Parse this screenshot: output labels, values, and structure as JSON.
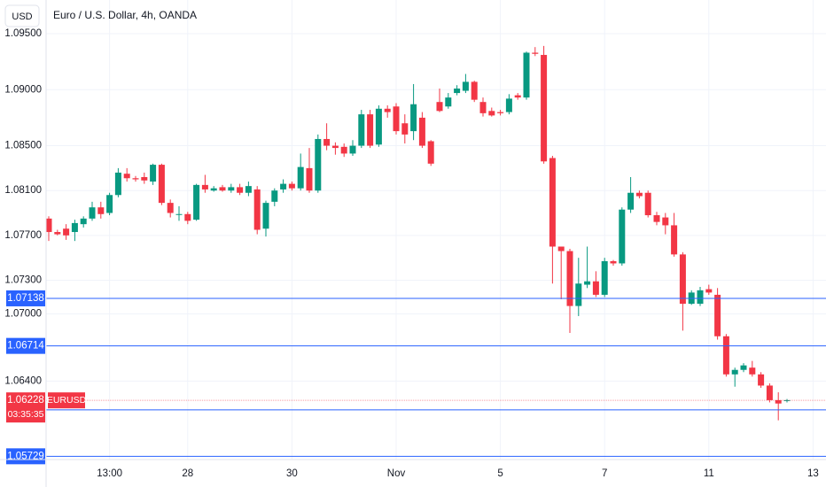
{
  "chart_data": {
    "type": "candlestick",
    "title": "Euro / U.S. Dollar, 4h, OANDA",
    "currency": "USD",
    "up_color": "#089981",
    "down_color": "#f23645",
    "grid": true,
    "ylim": [
      1.057,
      1.098
    ],
    "yticks": [
      {
        "value": 1.095,
        "label": "1.09500"
      },
      {
        "value": 1.09,
        "label": "1.09000"
      },
      {
        "value": 1.085,
        "label": "1.08500"
      },
      {
        "value": 1.081,
        "label": "1.08100"
      },
      {
        "value": 1.077,
        "label": "1.07700"
      },
      {
        "value": 1.073,
        "label": "1.07300"
      },
      {
        "value": 1.07,
        "label": "1.07000"
      },
      {
        "value": 1.064,
        "label": "1.06400"
      }
    ],
    "categories": [
      null,
      null,
      null,
      null,
      null,
      null,
      null,
      "13:00",
      null,
      null,
      null,
      null,
      null,
      null,
      null,
      null,
      "28",
      null,
      null,
      null,
      null,
      null,
      null,
      null,
      null,
      null,
      null,
      null,
      "30",
      null,
      null,
      null,
      null,
      null,
      null,
      null,
      null,
      null,
      null,
      null,
      "Nov",
      null,
      null,
      null,
      null,
      null,
      null,
      null,
      null,
      null,
      null,
      null,
      "5",
      null,
      null,
      null,
      null,
      null,
      null,
      null,
      null,
      null,
      null,
      null,
      "7",
      null,
      null,
      null,
      null,
      null,
      null,
      null,
      null,
      null,
      null,
      null,
      "11",
      null,
      null,
      null,
      null,
      null,
      null,
      null,
      null,
      null,
      null,
      null,
      "13"
    ],
    "open": [
      1.0785,
      1.0773,
      1.0776,
      1.0773,
      1.078,
      1.0785,
      1.0795,
      1.079,
      1.0806,
      1.0825,
      1.0821,
      1.0822,
      1.0818,
      1.0833,
      1.0799,
      1.0789,
      1.0789,
      1.0784,
      1.0815,
      1.081,
      1.0813,
      1.081,
      1.0813,
      1.0808,
      1.0811,
      1.0776,
      1.08,
      1.0811,
      1.0816,
      1.0812,
      1.083,
      1.081,
      1.0856,
      1.085,
      1.0849,
      1.0843,
      1.085,
      1.0878,
      1.0851,
      1.0883,
      1.0885,
      1.087,
      1.0863,
      1.0875,
      1.0854,
      1.0889,
      1.0885,
      1.0897,
      1.0899,
      1.0907,
      1.0889,
      1.0881,
      1.088,
      1.088,
      1.0895,
      1.0893,
      1.0933,
      1.0931,
      1.0839,
      1.076,
      1.0756,
      1.0707,
      1.0726,
      1.0729,
      1.0717,
      1.0747,
      1.0745,
      1.0793,
      1.0808,
      1.0808,
      1.0788,
      1.0786,
      1.0779,
      1.0753,
      1.0709,
      1.0709,
      1.0722,
      1.0717,
      1.068,
      1.0646,
      1.065,
      1.0652,
      1.0646,
      1.0636,
      1.0623,
      1.0623,
      null,
      null,
      null
    ],
    "high": [
      1.0787,
      1.0775,
      1.078,
      1.0784,
      1.0787,
      1.08,
      1.08,
      1.0808,
      1.083,
      1.083,
      1.0823,
      1.0826,
      1.0834,
      1.0834,
      1.0802,
      1.0796,
      1.0791,
      1.0816,
      1.0824,
      1.0814,
      1.0815,
      1.0816,
      1.0816,
      1.0818,
      1.0814,
      1.0801,
      1.0812,
      1.082,
      1.0818,
      1.0843,
      1.0848,
      1.086,
      1.087,
      1.0853,
      1.0852,
      1.0855,
      1.0882,
      1.0882,
      1.0886,
      1.0886,
      1.0888,
      1.0878,
      1.0905,
      1.088,
      1.0855,
      1.0901,
      1.0897,
      1.0904,
      1.0914,
      1.0908,
      1.0893,
      1.0884,
      1.0882,
      1.0896,
      1.0897,
      1.0934,
      1.0938,
      1.0939,
      1.0841,
      1.076,
      1.0758,
      1.075,
      1.076,
      1.0738,
      1.075,
      1.0748,
      1.0795,
      1.0822,
      1.081,
      1.081,
      1.0791,
      1.079,
      1.079,
      1.0755,
      1.0721,
      1.0724,
      1.0726,
      1.0723,
      1.0682,
      1.0652,
      1.0656,
      1.0658,
      1.0648,
      1.0638,
      1.063,
      1.0624,
      null,
      null,
      null
    ],
    "low": [
      1.0765,
      1.077,
      1.0766,
      1.0765,
      1.0777,
      1.0783,
      1.0785,
      1.0788,
      1.0804,
      1.0818,
      1.0818,
      1.0816,
      1.0815,
      1.0797,
      1.0786,
      1.0783,
      1.078,
      1.0783,
      1.0808,
      1.0809,
      1.0809,
      1.0808,
      1.0806,
      1.0805,
      1.0771,
      1.0769,
      1.0796,
      1.0808,
      1.081,
      1.081,
      1.0808,
      1.0808,
      1.0846,
      1.0842,
      1.084,
      1.0841,
      1.0848,
      1.0848,
      1.0849,
      1.0875,
      1.086,
      1.0852,
      1.0855,
      1.0848,
      1.0832,
      1.088,
      1.0883,
      1.0895,
      1.0897,
      1.0889,
      1.0876,
      1.0876,
      1.0877,
      1.0878,
      1.0891,
      1.0891,
      1.093,
      1.0834,
      1.0727,
      1.0713,
      1.0683,
      1.0698,
      1.0723,
      1.0715,
      1.0715,
      1.0743,
      1.0743,
      1.079,
      1.0803,
      1.0786,
      1.0779,
      1.0771,
      1.0751,
      1.0685,
      1.0708,
      1.0707,
      1.0717,
      1.0677,
      1.0644,
      1.0635,
      1.0648,
      1.0644,
      1.0634,
      1.0621,
      1.0605,
      1.0621,
      null,
      null,
      null
    ],
    "close": [
      1.0773,
      1.0771,
      1.077,
      1.0781,
      1.0785,
      1.0795,
      1.0789,
      1.0806,
      1.0826,
      1.0821,
      1.082,
      1.0819,
      1.0833,
      1.0799,
      1.079,
      1.0789,
      1.0783,
      1.0815,
      1.0811,
      1.0812,
      1.081,
      1.0813,
      1.0808,
      1.0814,
      1.0775,
      1.0799,
      1.081,
      1.0816,
      1.0812,
      1.0831,
      1.081,
      1.0856,
      1.085,
      1.0848,
      1.0843,
      1.085,
      1.0878,
      1.085,
      1.0883,
      1.088,
      1.0863,
      1.086,
      1.0887,
      1.085,
      1.0834,
      1.0881,
      1.0893,
      1.0901,
      1.0907,
      1.0891,
      1.0879,
      1.0877,
      1.0879,
      1.0892,
      1.0893,
      1.0933,
      1.0932,
      1.0836,
      1.076,
      1.0756,
      1.0707,
      1.0727,
      1.0729,
      1.0717,
      1.0747,
      1.0745,
      1.0793,
      1.0808,
      1.0805,
      1.0788,
      1.0782,
      1.0779,
      1.0753,
      1.0709,
      1.0719,
      1.0721,
      1.0719,
      1.068,
      1.0646,
      1.065,
      1.0654,
      1.0646,
      1.0636,
      1.0623,
      1.062,
      1.0623,
      null,
      null,
      null
    ],
    "price_lines": [
      {
        "value": 1.07138,
        "color": "#2962ff"
      },
      {
        "value": 1.06714,
        "color": "#2962ff"
      },
      {
        "value": 1.06143,
        "color": "#2962ff"
      },
      {
        "value": 1.05729,
        "color": "#2962ff"
      }
    ],
    "last_price": {
      "value": 1.06228,
      "symbol": "EURUSD",
      "countdown": "03:35:35",
      "color": "#f23645"
    }
  }
}
